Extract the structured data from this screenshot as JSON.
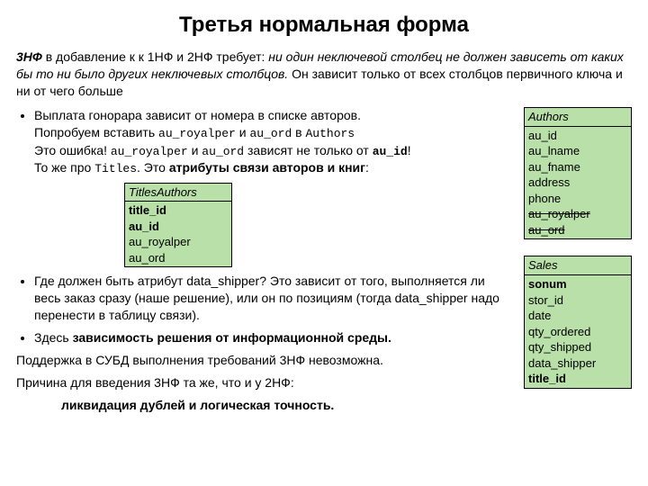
{
  "title": "Третья нормальная форма",
  "intro": {
    "term": "3НФ",
    "pre": " в добавление к к 1НФ и 2НФ требует: ",
    "req": "ни один неключевой столбец не должен зависеть от каких бы то ни было других неключевых столбцов.",
    "tail": " Он зависит только от всех столбцов первичного ключа и ни от чего больше"
  },
  "b1": {
    "l1a": "Выплата гонорара зависит от номера в списке авторов.",
    "l2a": "Попробуем вставить ",
    "l2b": "au_royalper",
    "l2c": " и ",
    "l2d": "au_ord",
    "l2e": " в ",
    "l2f": "Authors",
    "l3a": "Это ошибка! ",
    "l3b": "au_royalper",
    "l3c": " и ",
    "l3d": "au_ord",
    "l3e": " зависят не только от ",
    "l3f": "au_id",
    "l3g": "!",
    "l4a": "То же про ",
    "l4b": "Titles",
    "l4c": ". Это ",
    "l4d": "атрибуты связи авторов и книг",
    "l4e": ":"
  },
  "tbl_ta": {
    "title": "TitlesAuthors",
    "rows": [
      "title_id",
      "au_id",
      "au_royalper",
      "au_ord"
    ]
  },
  "b2": "Где должен быть атрибут data_shipper? Это зависит от того, выполняется ли весь заказ сразу (наше решение), или он по позициям (тогда data_shipper надо перенести в таблицу связи).",
  "b3a": "Здесь ",
  "b3b": "зависимость решения от информационной среды.",
  "p1": "Поддержка в СУБД выполнения требований 3НФ невозможна.",
  "p2": "Причина для введения 3НФ та же, что и у 2НФ:",
  "p3": "ликвидация дублей и логическая точность.",
  "authors": {
    "title": "Authors",
    "rows": [
      "au_id",
      "au_lname",
      "au_fname",
      "address",
      "phone"
    ],
    "struck": [
      "au_royalper",
      "au_ord"
    ]
  },
  "sales": {
    "title": "Sales",
    "rows": [
      "sonum",
      "stor_id",
      "date",
      "qty_ordered",
      "qty_shipped",
      "data_shipper"
    ],
    "bold": [
      "title_id"
    ]
  },
  "colors": {
    "table_bg": "#b8e0a8",
    "text": "#000000",
    "page_bg": "#ffffff"
  }
}
